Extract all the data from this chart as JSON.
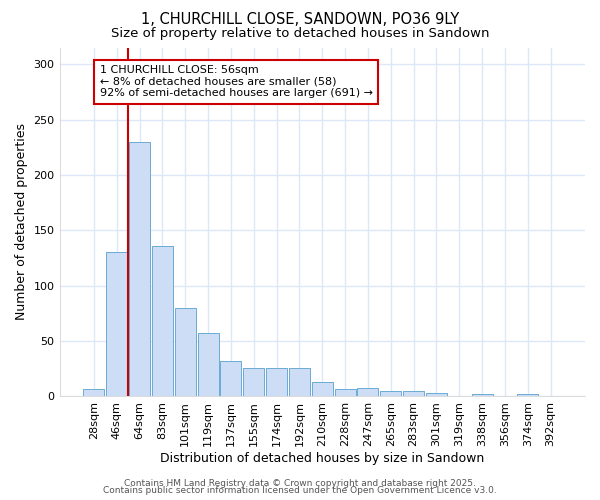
{
  "title1": "1, CHURCHILL CLOSE, SANDOWN, PO36 9LY",
  "title2": "Size of property relative to detached houses in Sandown",
  "xlabel": "Distribution of detached houses by size in Sandown",
  "ylabel": "Number of detached properties",
  "categories": [
    "28sqm",
    "46sqm",
    "64sqm",
    "83sqm",
    "101sqm",
    "119sqm",
    "137sqm",
    "155sqm",
    "174sqm",
    "192sqm",
    "210sqm",
    "228sqm",
    "247sqm",
    "265sqm",
    "283sqm",
    "301sqm",
    "319sqm",
    "338sqm",
    "356sqm",
    "374sqm",
    "392sqm"
  ],
  "values": [
    7,
    130,
    230,
    136,
    80,
    57,
    32,
    26,
    26,
    26,
    13,
    7,
    8,
    5,
    5,
    3,
    0,
    2,
    0,
    2,
    0
  ],
  "bar_color": "#ccddf5",
  "bar_edge_color": "#6aaad4",
  "vline_x_index": 1.5,
  "vline_color": "#cc0000",
  "annotation_text": "1 CHURCHILL CLOSE: 56sqm\n← 8% of detached houses are smaller (58)\n92% of semi-detached houses are larger (691) →",
  "annotation_box_color": "#ffffff",
  "annotation_box_edge": "#cc0000",
  "ylim": [
    0,
    315
  ],
  "yticks": [
    0,
    50,
    100,
    150,
    200,
    250,
    300
  ],
  "footer1": "Contains HM Land Registry data © Crown copyright and database right 2025.",
  "footer2": "Contains public sector information licensed under the Open Government Licence v3.0.",
  "bg_color": "#ffffff",
  "plot_bg_color": "#ffffff",
  "grid_color": "#dce8f8",
  "title_fontsize": 10.5,
  "subtitle_fontsize": 9.5,
  "axis_label_fontsize": 9,
  "tick_fontsize": 8,
  "footer_fontsize": 6.5,
  "annotation_fontsize": 8
}
